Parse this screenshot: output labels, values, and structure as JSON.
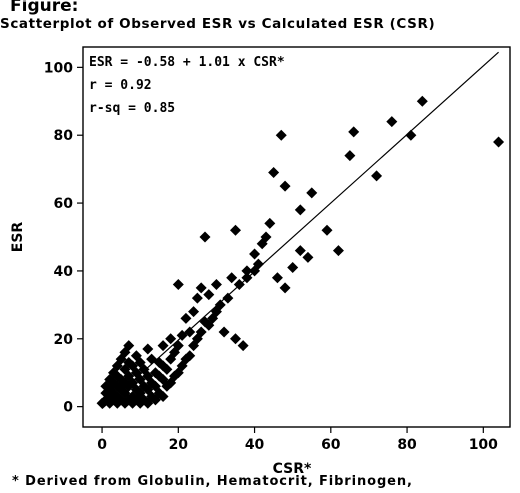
{
  "figure_label": "Figure:",
  "title": "Scatterplot of Observed ESR vs Calculated ESR (CSR)",
  "footnote": "* Derived from Globulin, Hematocrit, Fibrinogen,",
  "chart_data": {
    "type": "scatter",
    "xlabel": "CSR*",
    "ylabel": "ESR",
    "xlim": [
      -5,
      107
    ],
    "ylim": [
      -6,
      106
    ],
    "x_ticks": [
      0,
      20,
      40,
      60,
      80,
      100
    ],
    "y_ticks": [
      0,
      20,
      40,
      60,
      80,
      100
    ],
    "annotations": [
      "ESR = -0.58 + 1.01 x CSR*",
      "r = 0.92",
      "r-sq = 0.85"
    ],
    "regression_line": {
      "intercept": -0.58,
      "slope": 1.01,
      "x_range": [
        0,
        104
      ]
    },
    "grid": false,
    "marker": "diamond",
    "points": [
      [
        0,
        1
      ],
      [
        1,
        2
      ],
      [
        1,
        4
      ],
      [
        1,
        6
      ],
      [
        2,
        1
      ],
      [
        2,
        3
      ],
      [
        2,
        5
      ],
      [
        2,
        8
      ],
      [
        3,
        2
      ],
      [
        3,
        4
      ],
      [
        3,
        7
      ],
      [
        3,
        10
      ],
      [
        4,
        1
      ],
      [
        4,
        3
      ],
      [
        4,
        6
      ],
      [
        4,
        9
      ],
      [
        4,
        12
      ],
      [
        5,
        2
      ],
      [
        5,
        5
      ],
      [
        5,
        8
      ],
      [
        5,
        14
      ],
      [
        6,
        1
      ],
      [
        6,
        4
      ],
      [
        6,
        7
      ],
      [
        6,
        11
      ],
      [
        6,
        16
      ],
      [
        7,
        2
      ],
      [
        7,
        6
      ],
      [
        7,
        9
      ],
      [
        7,
        13
      ],
      [
        7,
        18
      ],
      [
        8,
        1
      ],
      [
        8,
        3
      ],
      [
        8,
        7
      ],
      [
        8,
        12
      ],
      [
        9,
        2
      ],
      [
        9,
        5
      ],
      [
        9,
        10
      ],
      [
        9,
        15
      ],
      [
        10,
        1
      ],
      [
        10,
        4
      ],
      [
        10,
        8
      ],
      [
        10,
        13
      ],
      [
        11,
        2
      ],
      [
        11,
        6
      ],
      [
        11,
        11
      ],
      [
        12,
        1
      ],
      [
        12,
        5
      ],
      [
        12,
        9
      ],
      [
        12,
        17
      ],
      [
        13,
        3
      ],
      [
        13,
        7
      ],
      [
        13,
        14
      ],
      [
        14,
        2
      ],
      [
        14,
        6
      ],
      [
        14,
        10
      ],
      [
        15,
        4
      ],
      [
        15,
        9
      ],
      [
        15,
        13
      ],
      [
        16,
        3
      ],
      [
        16,
        8
      ],
      [
        16,
        12
      ],
      [
        16,
        18
      ],
      [
        17,
        6
      ],
      [
        17,
        11
      ],
      [
        18,
        7
      ],
      [
        18,
        14
      ],
      [
        18,
        20
      ],
      [
        19,
        9
      ],
      [
        19,
        16
      ],
      [
        20,
        10
      ],
      [
        20,
        18
      ],
      [
        20,
        36
      ],
      [
        21,
        12
      ],
      [
        21,
        21
      ],
      [
        22,
        14
      ],
      [
        22,
        26
      ],
      [
        23,
        15
      ],
      [
        23,
        22
      ],
      [
        24,
        18
      ],
      [
        24,
        28
      ],
      [
        25,
        20
      ],
      [
        25,
        32
      ],
      [
        26,
        22
      ],
      [
        26,
        35
      ],
      [
        27,
        25
      ],
      [
        27,
        50
      ],
      [
        28,
        24
      ],
      [
        28,
        33
      ],
      [
        29,
        26
      ],
      [
        30,
        28
      ],
      [
        30,
        36
      ],
      [
        31,
        30
      ],
      [
        32,
        22
      ],
      [
        33,
        32
      ],
      [
        34,
        38
      ],
      [
        35,
        52
      ],
      [
        35,
        20
      ],
      [
        36,
        36
      ],
      [
        37,
        18
      ],
      [
        38,
        38
      ],
      [
        38,
        40
      ],
      [
        40,
        40
      ],
      [
        40,
        45
      ],
      [
        41,
        42
      ],
      [
        42,
        48
      ],
      [
        43,
        50
      ],
      [
        44,
        54
      ],
      [
        45,
        69
      ],
      [
        46,
        38
      ],
      [
        47,
        80
      ],
      [
        48,
        35
      ],
      [
        48,
        65
      ],
      [
        50,
        41
      ],
      [
        52,
        46
      ],
      [
        52,
        58
      ],
      [
        54,
        44
      ],
      [
        55,
        63
      ],
      [
        59,
        52
      ],
      [
        62,
        46
      ],
      [
        65,
        74
      ],
      [
        66,
        81
      ],
      [
        72,
        68
      ],
      [
        76,
        84
      ],
      [
        81,
        80
      ],
      [
        84,
        90
      ],
      [
        104,
        78
      ]
    ]
  }
}
